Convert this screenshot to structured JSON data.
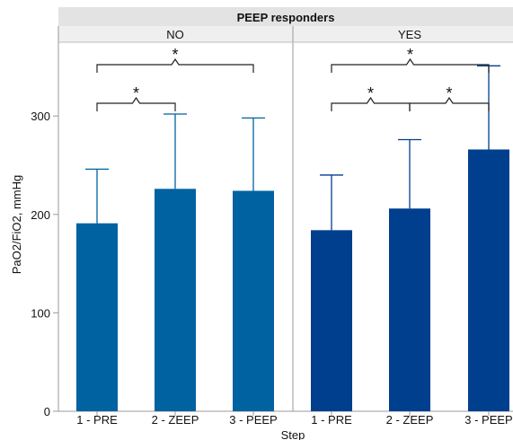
{
  "chart_data": {
    "type": "bar",
    "title": "PEEP responders",
    "xlabel": "Step",
    "ylabel": "PaO2/FiO2, mmHg",
    "ylim": [
      0,
      375
    ],
    "yticks": [
      0,
      100,
      200,
      300
    ],
    "grid": false,
    "panels": [
      {
        "label": "NO",
        "color": "#0062a0",
        "categories": [
          "1 - PRE",
          "2 - ZEEP",
          "3 - PEEP"
        ],
        "values": [
          191,
          226,
          224
        ],
        "error_upper": [
          246,
          302,
          298
        ],
        "significance": [
          {
            "from": 0,
            "to": 1,
            "symbol": "*"
          },
          {
            "from": 0,
            "to": 2,
            "symbol": "*"
          }
        ]
      },
      {
        "label": "YES",
        "color": "#003f8e",
        "categories": [
          "1 - PRE",
          "2 - ZEEP",
          "3 - PEEP"
        ],
        "values": [
          184,
          206,
          266
        ],
        "error_upper": [
          240,
          276,
          351
        ],
        "significance": [
          {
            "from": 0,
            "to": 1,
            "symbol": "*"
          },
          {
            "from": 1,
            "to": 2,
            "symbol": "*"
          },
          {
            "from": 0,
            "to": 2,
            "symbol": "*"
          }
        ]
      }
    ]
  }
}
